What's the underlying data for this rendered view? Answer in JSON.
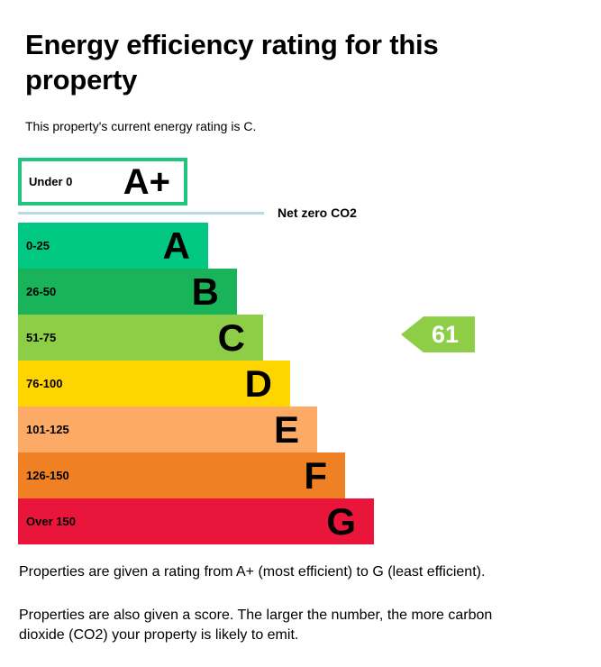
{
  "page": {
    "title": "Energy efficiency rating for this property",
    "subtitle": "This property's current energy rating is C.",
    "footer_p1": "Properties are given a rating from A+ (most efficient) to G (least efficient).",
    "footer_p2": "Properties are also given a score. The larger the number, the more carbon dioxide (CO2) your property is likely to emit."
  },
  "chart_data": {
    "type": "bar",
    "title": "Energy efficiency rating for this property",
    "subtitle": "This property's current energy rating is C.",
    "orientation": "horizontal",
    "net_zero_label": "Net zero CO2",
    "net_zero_line_color": "#b7d9e8",
    "current": {
      "score": 61,
      "band": "C",
      "color": "#8dce46"
    },
    "bands": [
      {
        "letter": "A+",
        "range": "Under 0",
        "color": "#ffffff",
        "border_color": "#22c47f"
      },
      {
        "letter": "A",
        "range": "0-25",
        "color": "#00c781"
      },
      {
        "letter": "B",
        "range": "26-50",
        "color": "#19b459"
      },
      {
        "letter": "C",
        "range": "51-75",
        "color": "#8dce46"
      },
      {
        "letter": "D",
        "range": "76-100",
        "color": "#ffd500"
      },
      {
        "letter": "E",
        "range": "101-125",
        "color": "#fcaa65"
      },
      {
        "letter": "F",
        "range": "126-150",
        "color": "#ef8023"
      },
      {
        "letter": "G",
        "range": "Over 150",
        "color": "#e9153b"
      }
    ]
  }
}
